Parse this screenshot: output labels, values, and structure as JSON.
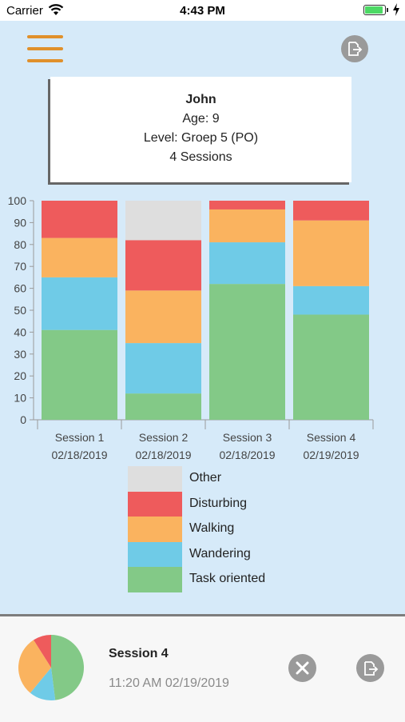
{
  "status_bar": {
    "carrier": "Carrier",
    "time": "4:43 PM",
    "battery_color": "#4cd964"
  },
  "header": {
    "menu_icon": "hamburger-menu-icon",
    "menu_color": "#e0902b",
    "export_icon": "export-icon"
  },
  "student": {
    "name": "John",
    "age": "Age: 9",
    "level": "Level: Groep 5 (PO)",
    "sessions": "4 Sessions"
  },
  "chart_data": {
    "type": "bar",
    "stacked": true,
    "categories": [
      "Session 1\n02/18/2019",
      "Session 2\n02/18/2019",
      "Session 3\n02/18/2019",
      "Session 4\n02/19/2019"
    ],
    "category_lines": [
      [
        "Session 1",
        "02/18/2019"
      ],
      [
        "Session 2",
        "02/18/2019"
      ],
      [
        "Session 3",
        "02/18/2019"
      ],
      [
        "Session 4",
        "02/19/2019"
      ]
    ],
    "series": [
      {
        "name": "Task oriented",
        "color": "#83c987",
        "values": [
          41,
          12,
          62,
          48
        ]
      },
      {
        "name": "Wandering",
        "color": "#6fcbe7",
        "values": [
          24,
          23,
          19,
          13
        ]
      },
      {
        "name": "Walking",
        "color": "#fab35f",
        "values": [
          18,
          24,
          15,
          30
        ]
      },
      {
        "name": "Disturbing",
        "color": "#ee5b5c",
        "values": [
          17,
          23,
          4,
          9
        ]
      },
      {
        "name": "Other",
        "color": "#dedede",
        "values": [
          0,
          18,
          0,
          0
        ]
      }
    ],
    "ylim": [
      0,
      100
    ],
    "yticks": [
      0,
      10,
      20,
      30,
      40,
      50,
      60,
      70,
      80,
      90,
      100
    ],
    "title": "",
    "xlabel": "",
    "ylabel": "",
    "legend_position": "bottom",
    "grid": false
  },
  "legend": [
    {
      "label": "Other",
      "color": "#dedede"
    },
    {
      "label": "Disturbing",
      "color": "#ee5b5c"
    },
    {
      "label": "Walking",
      "color": "#fab35f"
    },
    {
      "label": "Wandering",
      "color": "#6fcbe7"
    },
    {
      "label": "Task oriented",
      "color": "#83c987"
    }
  ],
  "selected_session": {
    "title": "Session 4",
    "time": "11:20 AM 02/19/2019",
    "close_icon": "close-icon",
    "export_icon": "export-icon",
    "pie_values": [
      {
        "name": "Task oriented",
        "value": 48,
        "color": "#83c987"
      },
      {
        "name": "Wandering",
        "value": 13,
        "color": "#6fcbe7"
      },
      {
        "name": "Walking",
        "value": 30,
        "color": "#fab35f"
      },
      {
        "name": "Disturbing",
        "value": 9,
        "color": "#ee5b5c"
      }
    ]
  }
}
